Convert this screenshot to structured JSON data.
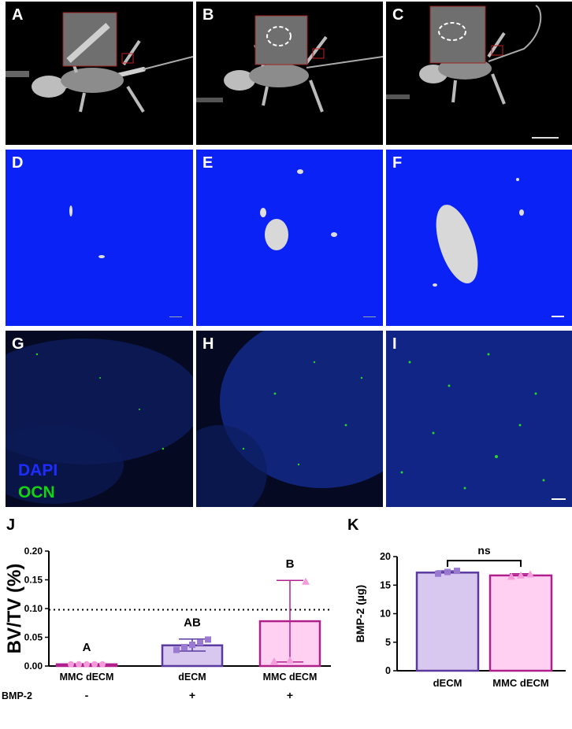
{
  "panels": {
    "A": "A",
    "B": "B",
    "C": "C",
    "D": "D",
    "E": "E",
    "F": "F",
    "G": "G",
    "H": "H",
    "I": "I"
  },
  "stain_legend": {
    "dapi": "DAPI",
    "ocn": "OCN",
    "dapi_color": "#1e2cff",
    "ocn_color": "#14d214"
  },
  "colors": {
    "lavender_fill": "#d8c8ef",
    "lavender_edge": "#5b3aa0",
    "pink_fill": "#ffd0f2",
    "pink_edge": "#b0208c",
    "pink_point": "#f59bdc",
    "ct_bg": "#0a22f5"
  },
  "chart_data": [
    {
      "panel": "J",
      "type": "bar",
      "ylabel": "BV/TV (%)",
      "ylim": [
        0,
        0.2
      ],
      "yticks": [
        "0.00",
        "0.05",
        "0.10",
        "0.15",
        "0.20"
      ],
      "reference_line": 0.098,
      "categories": [
        "MMC dECM",
        "dECM",
        "MMC dECM"
      ],
      "row_label": "BMP-2",
      "row_values": [
        "-",
        "+",
        "+"
      ],
      "values": [
        0.003,
        0.036,
        0.078
      ],
      "errors": [
        [
          0.002,
          0.004
        ],
        [
          0.026,
          0.047
        ],
        [
          0.007,
          0.149
        ]
      ],
      "letters": [
        "A",
        "AB",
        "B"
      ],
      "points": [
        [
          0.003,
          0.003,
          0.003,
          0.003,
          0.003
        ],
        [
          0.028,
          0.033,
          0.037,
          0.041,
          0.046
        ],
        [
          0.008,
          0.01,
          0.147
        ]
      ]
    },
    {
      "panel": "K",
      "type": "bar",
      "ylabel": "BMP-2 (µg)",
      "ylim": [
        0,
        20
      ],
      "yticks": [
        "0",
        "5",
        "10",
        "15",
        "20"
      ],
      "categories": [
        "dECM",
        "MMC dECM"
      ],
      "values": [
        17.2,
        16.7
      ],
      "errors": [
        [
          16.9,
          17.5
        ],
        [
          16.4,
          17.0
        ]
      ],
      "significance": "ns",
      "points": [
        [
          17.0,
          17.3,
          17.5
        ],
        [
          16.5,
          16.7,
          16.9
        ]
      ]
    }
  ]
}
